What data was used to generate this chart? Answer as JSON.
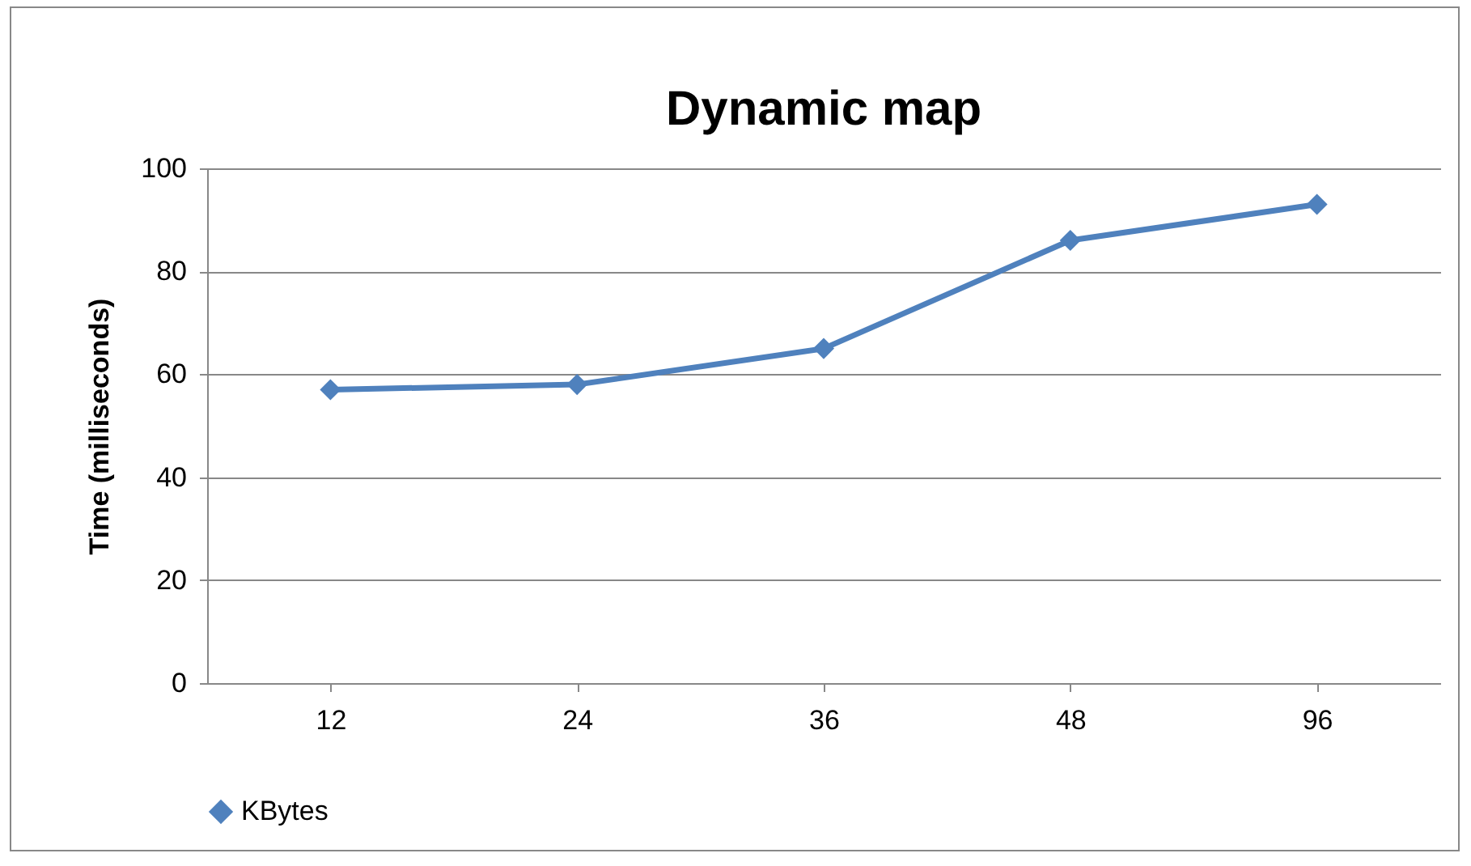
{
  "chart_data": {
    "type": "line",
    "title": "Dynamic map",
    "ylabel": "Time (milliseconds)",
    "categories": [
      "12",
      "24",
      "36",
      "48",
      "96"
    ],
    "series": [
      {
        "name": "KBytes",
        "color": "#4f81bd",
        "values": [
          57,
          58,
          65,
          86,
          93
        ]
      }
    ],
    "ylim": [
      0,
      100
    ],
    "yticks": [
      0,
      20,
      40,
      60,
      80,
      100
    ],
    "grid": "y",
    "legend": "bottom",
    "marker": "diamond",
    "line_style": "solid"
  }
}
